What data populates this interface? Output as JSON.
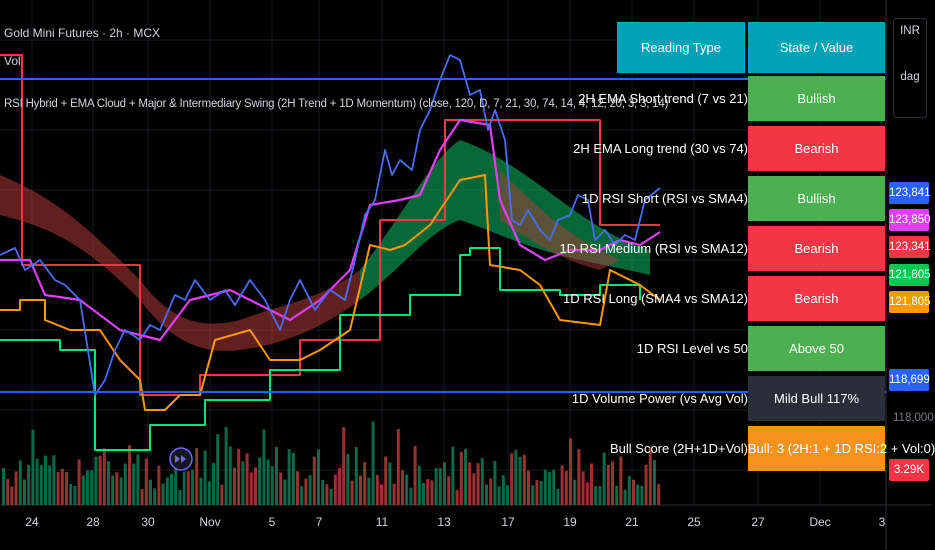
{
  "symbol": {
    "title": "Gold Mini Futures · 2h · MCX",
    "volume_label": "Vol",
    "indicator_label": "RSI Hybrid + EMA Cloud + Major & Intermediary Swing (2H Trend + 1D Momentum) (close, 120, D, 7, 21, 30, 74, 14, 4, 12, 20, 3, 3, 14)"
  },
  "table": {
    "headers": [
      "Reading Type",
      "State / Value"
    ],
    "rows": [
      {
        "label": "2H EMA Short trend (7 vs 21)",
        "value": "Bullish",
        "color": "#4caf50"
      },
      {
        "label": "2H EMA Long trend (30 vs 74)",
        "value": "Bearish",
        "color": "#f23645"
      },
      {
        "label": "1D RSI Short (RSI vs SMA4)",
        "value": "Bullish",
        "color": "#4caf50"
      },
      {
        "label": "1D RSI Medium (RSI vs SMA12)",
        "value": "Bearish",
        "color": "#f23645"
      },
      {
        "label": "1D RSI Long (SMA4 vs SMA12)",
        "value": "Bearish",
        "color": "#f23645"
      },
      {
        "label": "1D RSI Level vs 50",
        "value": "Above 50",
        "color": "#4caf50"
      },
      {
        "label": "1D Volume Power (vs Avg Vol)",
        "value": "Mild Bull 117%",
        "color": "#2a2e39"
      },
      {
        "label": "Bull Score (2H+1D+Vol)",
        "value": "Bull: 3 (2H:1 + 1D RSI:2 + Vol:0)",
        "color": "#f7931a"
      }
    ]
  },
  "price_axis": {
    "currency": "INR",
    "scale_mode": "dag",
    "tags": [
      {
        "value": "123,841",
        "color": "#2962ff"
      },
      {
        "value": "123,850",
        "color": "#e040fb"
      },
      {
        "value": "123,341",
        "color": "#f23645"
      },
      {
        "value": "121,805",
        "color": "#00c853"
      },
      {
        "value": "121,805",
        "color": "#ff9800"
      },
      {
        "value": "118,699",
        "color": "#2962ff"
      },
      {
        "value": "3.29K",
        "color": "#f23645"
      }
    ],
    "plain_labels": [
      "118,000"
    ]
  },
  "time_axis": {
    "ticks": [
      "24",
      "28",
      "30",
      "Nov",
      "5",
      "7",
      "11",
      "13",
      "17",
      "19",
      "21",
      "25",
      "27",
      "Dec",
      "3"
    ]
  },
  "colors": {
    "price_line": "#4a6cf7",
    "major_swing": "#f23645",
    "ema_short": "#e040fb",
    "support": "#00e676",
    "intermediate": "#ff9800",
    "horizontal_line": "#2962ff",
    "cloud_bull": "#0b9e55",
    "cloud_bear": "#b03a3a"
  },
  "icons": [
    "fast-forward-icon"
  ]
}
